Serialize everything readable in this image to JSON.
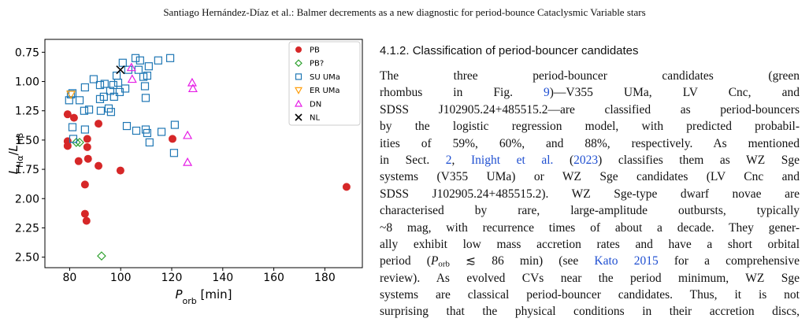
{
  "header": {
    "text": "Santiago Hernández-Díaz et al.:  Balmer decrements as a new diagnostic for period-bounce Cataclysmic Variable stars"
  },
  "chart_data": {
    "type": "scatter",
    "xlabel": [
      {
        "text": "P",
        "italic": true
      },
      {
        "text": "orb",
        "sub": true
      },
      {
        "text": " [min]"
      }
    ],
    "ylabel": [
      {
        "text": "L",
        "italic": true
      },
      {
        "text": "Hα",
        "sub": true
      },
      {
        "text": "/"
      },
      {
        "text": "L",
        "italic": true
      },
      {
        "text": "Hβ",
        "sub": true
      }
    ],
    "xlim": [
      70.3,
      194.7
    ],
    "ylim": [
      2.59,
      0.64
    ],
    "xticks": [
      80,
      100,
      120,
      140,
      160,
      180
    ],
    "yticks": [
      {
        "value": 0.75,
        "label": "0.75"
      },
      {
        "value": 1.0,
        "label": "1.00"
      },
      {
        "value": 1.25,
        "label": "1.25"
      },
      {
        "value": 1.5,
        "label": "1.50"
      },
      {
        "value": 1.75,
        "label": "1.75"
      },
      {
        "value": 2.0,
        "label": "2.00"
      },
      {
        "value": 2.25,
        "label": "2.25"
      },
      {
        "value": 2.5,
        "label": "2.50"
      }
    ],
    "legend": "upper right",
    "series": [
      {
        "name": "PB",
        "color": "#d62728",
        "marker": "o",
        "x": [
          79.2,
          81.7,
          79.2,
          79.2,
          91.3,
          83.5,
          86.9,
          86.9,
          87.2,
          91.3,
          86.0,
          86.0,
          86.6,
          99.9,
          120.3,
          188.5
        ],
        "y": [
          1.28,
          1.31,
          1.51,
          1.55,
          1.36,
          1.68,
          1.56,
          1.49,
          1.66,
          1.72,
          1.88,
          2.13,
          2.19,
          1.76,
          1.49,
          1.9
        ]
      },
      {
        "name": "PB?",
        "color": "#2ca02c",
        "marker": "D",
        "x": [
          82.6,
          83.9,
          92.5
        ],
        "y": [
          1.52,
          1.52,
          2.49
        ]
      },
      {
        "name": "SU UMa",
        "color": "#1f77b4",
        "marker": "s",
        "x": [
          80.5,
          81.1,
          83.9,
          85.7,
          89.4,
          86.0,
          91.9,
          93.7,
          95.9,
          97.1,
          99.0,
          99.6,
          100.8,
          103.0,
          105.8,
          107.0,
          107.6,
          108.9,
          110.4,
          111.0,
          114.7,
          119.4,
          109.8,
          109.5,
          101.8,
          97.4,
          93.4,
          91.9,
          92.2,
          95.3,
          96.2,
          87.6,
          86.0,
          81.1,
          81.4,
          102.4,
          106.1,
          109.8,
          110.4,
          111.3,
          116.0,
          120.9,
          121.2,
          98.4,
          79.8
        ],
        "y": [
          1.11,
          1.1,
          1.16,
          1.25,
          0.98,
          1.05,
          1.03,
          1.02,
          1.08,
          1.03,
          1.01,
          1.09,
          0.84,
          0.9,
          0.8,
          0.9,
          0.82,
          0.96,
          0.95,
          0.87,
          0.82,
          0.8,
          1.14,
          1.04,
          1.06,
          1.13,
          1.13,
          1.15,
          1.25,
          1.23,
          1.26,
          1.24,
          1.41,
          1.39,
          1.49,
          1.38,
          1.42,
          1.41,
          1.44,
          1.52,
          1.43,
          1.61,
          1.37,
          0.95,
          1.16
        ]
      },
      {
        "name": "ER UMa",
        "color": "#ff9f0e",
        "marker": "v",
        "x": [
          80.5
        ],
        "y": [
          1.11
        ]
      },
      {
        "name": "DN",
        "color": "#e61ee6",
        "marker": "^",
        "x": [
          104.2,
          104.5,
          128.0,
          128.3,
          126.2,
          126.2
        ],
        "y": [
          0.88,
          0.98,
          1.01,
          1.06,
          1.46,
          1.69
        ]
      },
      {
        "name": "NL",
        "color": "#000000",
        "marker": "x",
        "x": [
          99.9
        ],
        "y": [
          0.9
        ]
      }
    ]
  },
  "section": {
    "heading": "4.1.2. Classification of period-bouncer candidates"
  },
  "paragraph": {
    "lines": [
      [
        {
          "text": "The three period-bouncer candidates (green"
        }
      ],
      [
        {
          "text": "rhombus in Fig. "
        },
        {
          "text": "9",
          "link": true
        },
        {
          "text": ")—V355 UMa, LV Cnc, and"
        }
      ],
      [
        {
          "text": "SDSS J102905.24+485515.2—are classified as period-bouncers"
        }
      ],
      [
        {
          "text": "by the logistic regression model, with predicted probabil-"
        }
      ],
      [
        {
          "text": "ities of 59%, 60%, and 88%, respectively. As mentioned"
        }
      ],
      [
        {
          "text": "in Sect. "
        },
        {
          "text": "2",
          "link": true
        },
        {
          "text": ", "
        },
        {
          "text": "Inight et al.",
          "link": true
        },
        {
          "text": " ("
        },
        {
          "text": "2023",
          "link": true
        },
        {
          "text": ") classifies them as WZ Sge"
        }
      ],
      [
        {
          "text": "systems (V355 UMa) or WZ Sge candidates (LV Cnc and"
        }
      ],
      [
        {
          "text": "SDSS J102905.24+485515.2). WZ Sge-type dwarf novae are"
        }
      ],
      [
        {
          "text": "characterised by rare, large-amplitude outbursts, typically"
        }
      ],
      [
        {
          "text": "~8 mag, with recurrence times of about a decade. They gener-"
        }
      ],
      [
        {
          "text": "ally exhibit low mass accretion rates and have a short orbital"
        }
      ],
      [
        {
          "text": "period ("
        },
        {
          "text": "P",
          "italic": true
        },
        {
          "text": "orb",
          "sub": true
        },
        {
          "text": " ≲ 86 min) (see "
        },
        {
          "text": "Kato 2015",
          "link": true
        },
        {
          "text": " for a comprehensive"
        }
      ],
      [
        {
          "text": "review). As evolved CVs near the period minimum, WZ Sge"
        }
      ],
      [
        {
          "text": "systems are classical period-bouncer candidates. Thus, it is not"
        }
      ],
      [
        {
          "text": "surprising that the physical conditions in their accretion discs,"
        }
      ]
    ]
  }
}
